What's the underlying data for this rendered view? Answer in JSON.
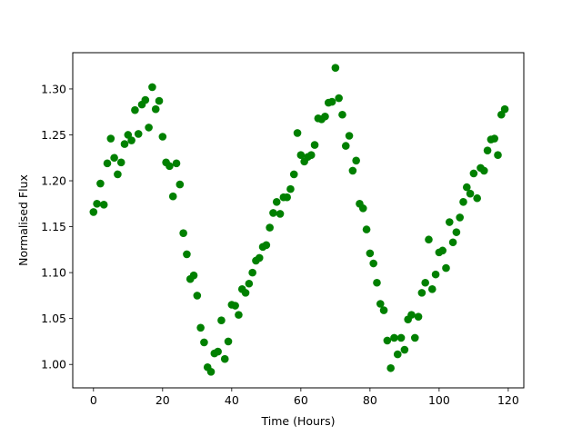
{
  "chart_data": {
    "type": "scatter",
    "xlabel": "Time (Hours)",
    "ylabel": "Normalised Flux",
    "xlim": [
      -6,
      124.5
    ],
    "ylim": [
      0.9745,
      1.3395
    ],
    "xticks": [
      0,
      20,
      40,
      60,
      80,
      100,
      120
    ],
    "yticks": [
      1.0,
      1.05,
      1.1,
      1.15,
      1.2,
      1.25,
      1.3
    ],
    "xtick_labels": [
      "0",
      "20",
      "40",
      "60",
      "80",
      "100",
      "120"
    ],
    "ytick_labels": [
      "1.00",
      "1.05",
      "1.10",
      "1.15",
      "1.20",
      "1.25",
      "1.30"
    ],
    "grid": false,
    "marker_color": "#008000",
    "x": [
      0,
      1,
      2,
      3,
      4,
      5,
      6,
      7,
      8,
      9,
      10,
      11,
      12,
      13,
      14,
      15,
      16,
      17,
      18,
      19,
      20,
      21,
      22,
      23,
      24,
      25,
      26,
      27,
      28,
      29,
      30,
      31,
      32,
      33,
      34,
      35,
      36,
      37,
      38,
      39,
      40,
      41,
      42,
      43,
      44,
      45,
      46,
      47,
      48,
      49,
      50,
      51,
      52,
      53,
      54,
      55,
      56,
      57,
      58,
      59,
      60,
      61,
      62,
      63,
      64,
      65,
      66,
      67,
      68,
      69,
      70,
      71,
      72,
      73,
      74,
      75,
      76,
      77,
      78,
      79,
      80,
      81,
      82,
      83,
      84,
      85,
      86,
      87,
      88,
      89,
      90,
      91,
      92,
      93,
      94,
      95,
      96,
      97,
      98,
      99,
      100,
      101,
      102,
      103,
      104,
      105,
      106,
      107,
      108,
      109,
      110,
      111,
      112,
      113,
      114,
      115,
      116,
      117,
      118,
      119
    ],
    "y": [
      1.166,
      1.175,
      1.197,
      1.174,
      1.219,
      1.246,
      1.225,
      1.207,
      1.22,
      1.24,
      1.25,
      1.244,
      1.277,
      1.251,
      1.283,
      1.288,
      1.258,
      1.302,
      1.278,
      1.287,
      1.248,
      1.22,
      1.216,
      1.183,
      1.219,
      1.196,
      1.143,
      1.12,
      1.093,
      1.097,
      1.075,
      1.04,
      1.024,
      0.997,
      0.992,
      1.012,
      1.014,
      1.048,
      1.006,
      1.025,
      1.065,
      1.064,
      1.054,
      1.082,
      1.078,
      1.088,
      1.1,
      1.113,
      1.116,
      1.128,
      1.13,
      1.149,
      1.165,
      1.177,
      1.164,
      1.182,
      1.182,
      1.191,
      1.207,
      1.252,
      1.228,
      1.221,
      1.226,
      1.228,
      1.239,
      1.268,
      1.267,
      1.27,
      1.285,
      1.286,
      1.323,
      1.29,
      1.272,
      1.238,
      1.249,
      1.211,
      1.222,
      1.175,
      1.17,
      1.147,
      1.121,
      1.11,
      1.089,
      1.066,
      1.059,
      1.026,
      0.996,
      1.029,
      1.011,
      1.029,
      1.016,
      1.049,
      1.054,
      1.029,
      1.052,
      1.078,
      1.089,
      1.136,
      1.082,
      1.098,
      1.122,
      1.124,
      1.105,
      1.155,
      1.133,
      1.144,
      1.16,
      1.177,
      1.193,
      1.186,
      1.208,
      1.181,
      1.214,
      1.211,
      1.233,
      1.245,
      1.246,
      1.228,
      1.272,
      1.278
    ]
  }
}
